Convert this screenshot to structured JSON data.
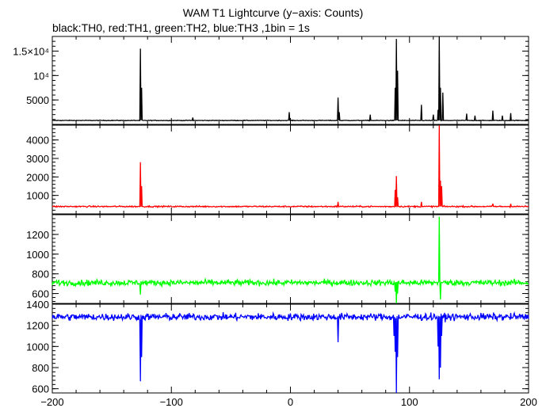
{
  "title": "WAM T1 Lightcurve (y−axis: Counts)",
  "subtitle": "black:TH0, red:TH1, green:TH2, blue:TH3 ,1bin = 1s",
  "chart_data": {
    "type": "line",
    "x_range": [
      -200,
      200
    ],
    "x_ticks": [
      -200,
      -100,
      0,
      100,
      200
    ],
    "x_tick_labels": [
      "−200",
      "−100",
      "0",
      "100",
      "200"
    ],
    "grid": false,
    "panels": [
      {
        "name": "TH0",
        "color": "#000000",
        "ylim": [
          0,
          18000
        ],
        "yticks": [
          5000,
          10000,
          15000
        ],
        "ytick_labels": [
          "5000",
          "10⁴",
          "1.5×10⁴"
        ],
        "baseline": 800,
        "noise": 60,
        "spikes": [
          [
            -126,
            15500
          ],
          [
            -125,
            7500
          ],
          [
            -82,
            1400
          ],
          [
            -1,
            2500
          ],
          [
            40,
            5500
          ],
          [
            41,
            2500
          ],
          [
            67,
            2000
          ],
          [
            88,
            7500
          ],
          [
            89,
            17500
          ],
          [
            90,
            11000
          ],
          [
            110,
            4000
          ],
          [
            120,
            2000
          ],
          [
            124,
            3000
          ],
          [
            125,
            18000
          ],
          [
            126,
            7500
          ],
          [
            128,
            6500
          ],
          [
            148,
            2200
          ],
          [
            155,
            1800
          ],
          [
            170,
            2800
          ],
          [
            178,
            1800
          ],
          [
            185,
            2300
          ]
        ],
        "dips": []
      },
      {
        "name": "TH1",
        "color": "#ff0000",
        "ylim": [
          0,
          4800
        ],
        "yticks": [
          1000,
          2000,
          3000,
          4000
        ],
        "ytick_labels": [
          "1000",
          "2000",
          "3000",
          "4000"
        ],
        "baseline": 400,
        "noise": 35,
        "spikes": [
          [
            -126,
            2800
          ],
          [
            -125,
            1500
          ],
          [
            40,
            650
          ],
          [
            88,
            1300
          ],
          [
            89,
            2050
          ],
          [
            90,
            900
          ],
          [
            110,
            650
          ],
          [
            125,
            4800
          ],
          [
            126,
            1800
          ],
          [
            127,
            1500
          ],
          [
            170,
            550
          ],
          [
            185,
            550
          ]
        ],
        "dips": []
      },
      {
        "name": "TH2",
        "color": "#00ff00",
        "ylim": [
          500,
          1400
        ],
        "yticks": [
          600,
          800,
          1000,
          1200
        ],
        "ytick_labels": [
          "600",
          "800",
          "1000",
          "1200"
        ],
        "baseline": 710,
        "noise": 28,
        "spikes": [
          [
            125,
            1380
          ],
          [
            126,
            950
          ]
        ],
        "dips": [
          [
            -126,
            590
          ],
          [
            88,
            620
          ],
          [
            89,
            500
          ],
          [
            90,
            600
          ],
          [
            126,
            540
          ]
        ]
      },
      {
        "name": "TH3",
        "color": "#0000ff",
        "ylim": [
          560,
          1400
        ],
        "yticks": [
          600,
          800,
          1000,
          1200,
          1400
        ],
        "ytick_labels": [
          "600",
          "800",
          "1000",
          "1200",
          "1400"
        ],
        "baseline": 1280,
        "noise": 32,
        "spikes": [],
        "dips": [
          [
            -126,
            670
          ],
          [
            -125,
            900
          ],
          [
            40,
            1040
          ],
          [
            87,
            1100
          ],
          [
            88,
            950
          ],
          [
            89,
            560
          ],
          [
            90,
            900
          ],
          [
            124,
            1000
          ],
          [
            125,
            690
          ],
          [
            126,
            800
          ],
          [
            127,
            1100
          ]
        ]
      }
    ]
  }
}
